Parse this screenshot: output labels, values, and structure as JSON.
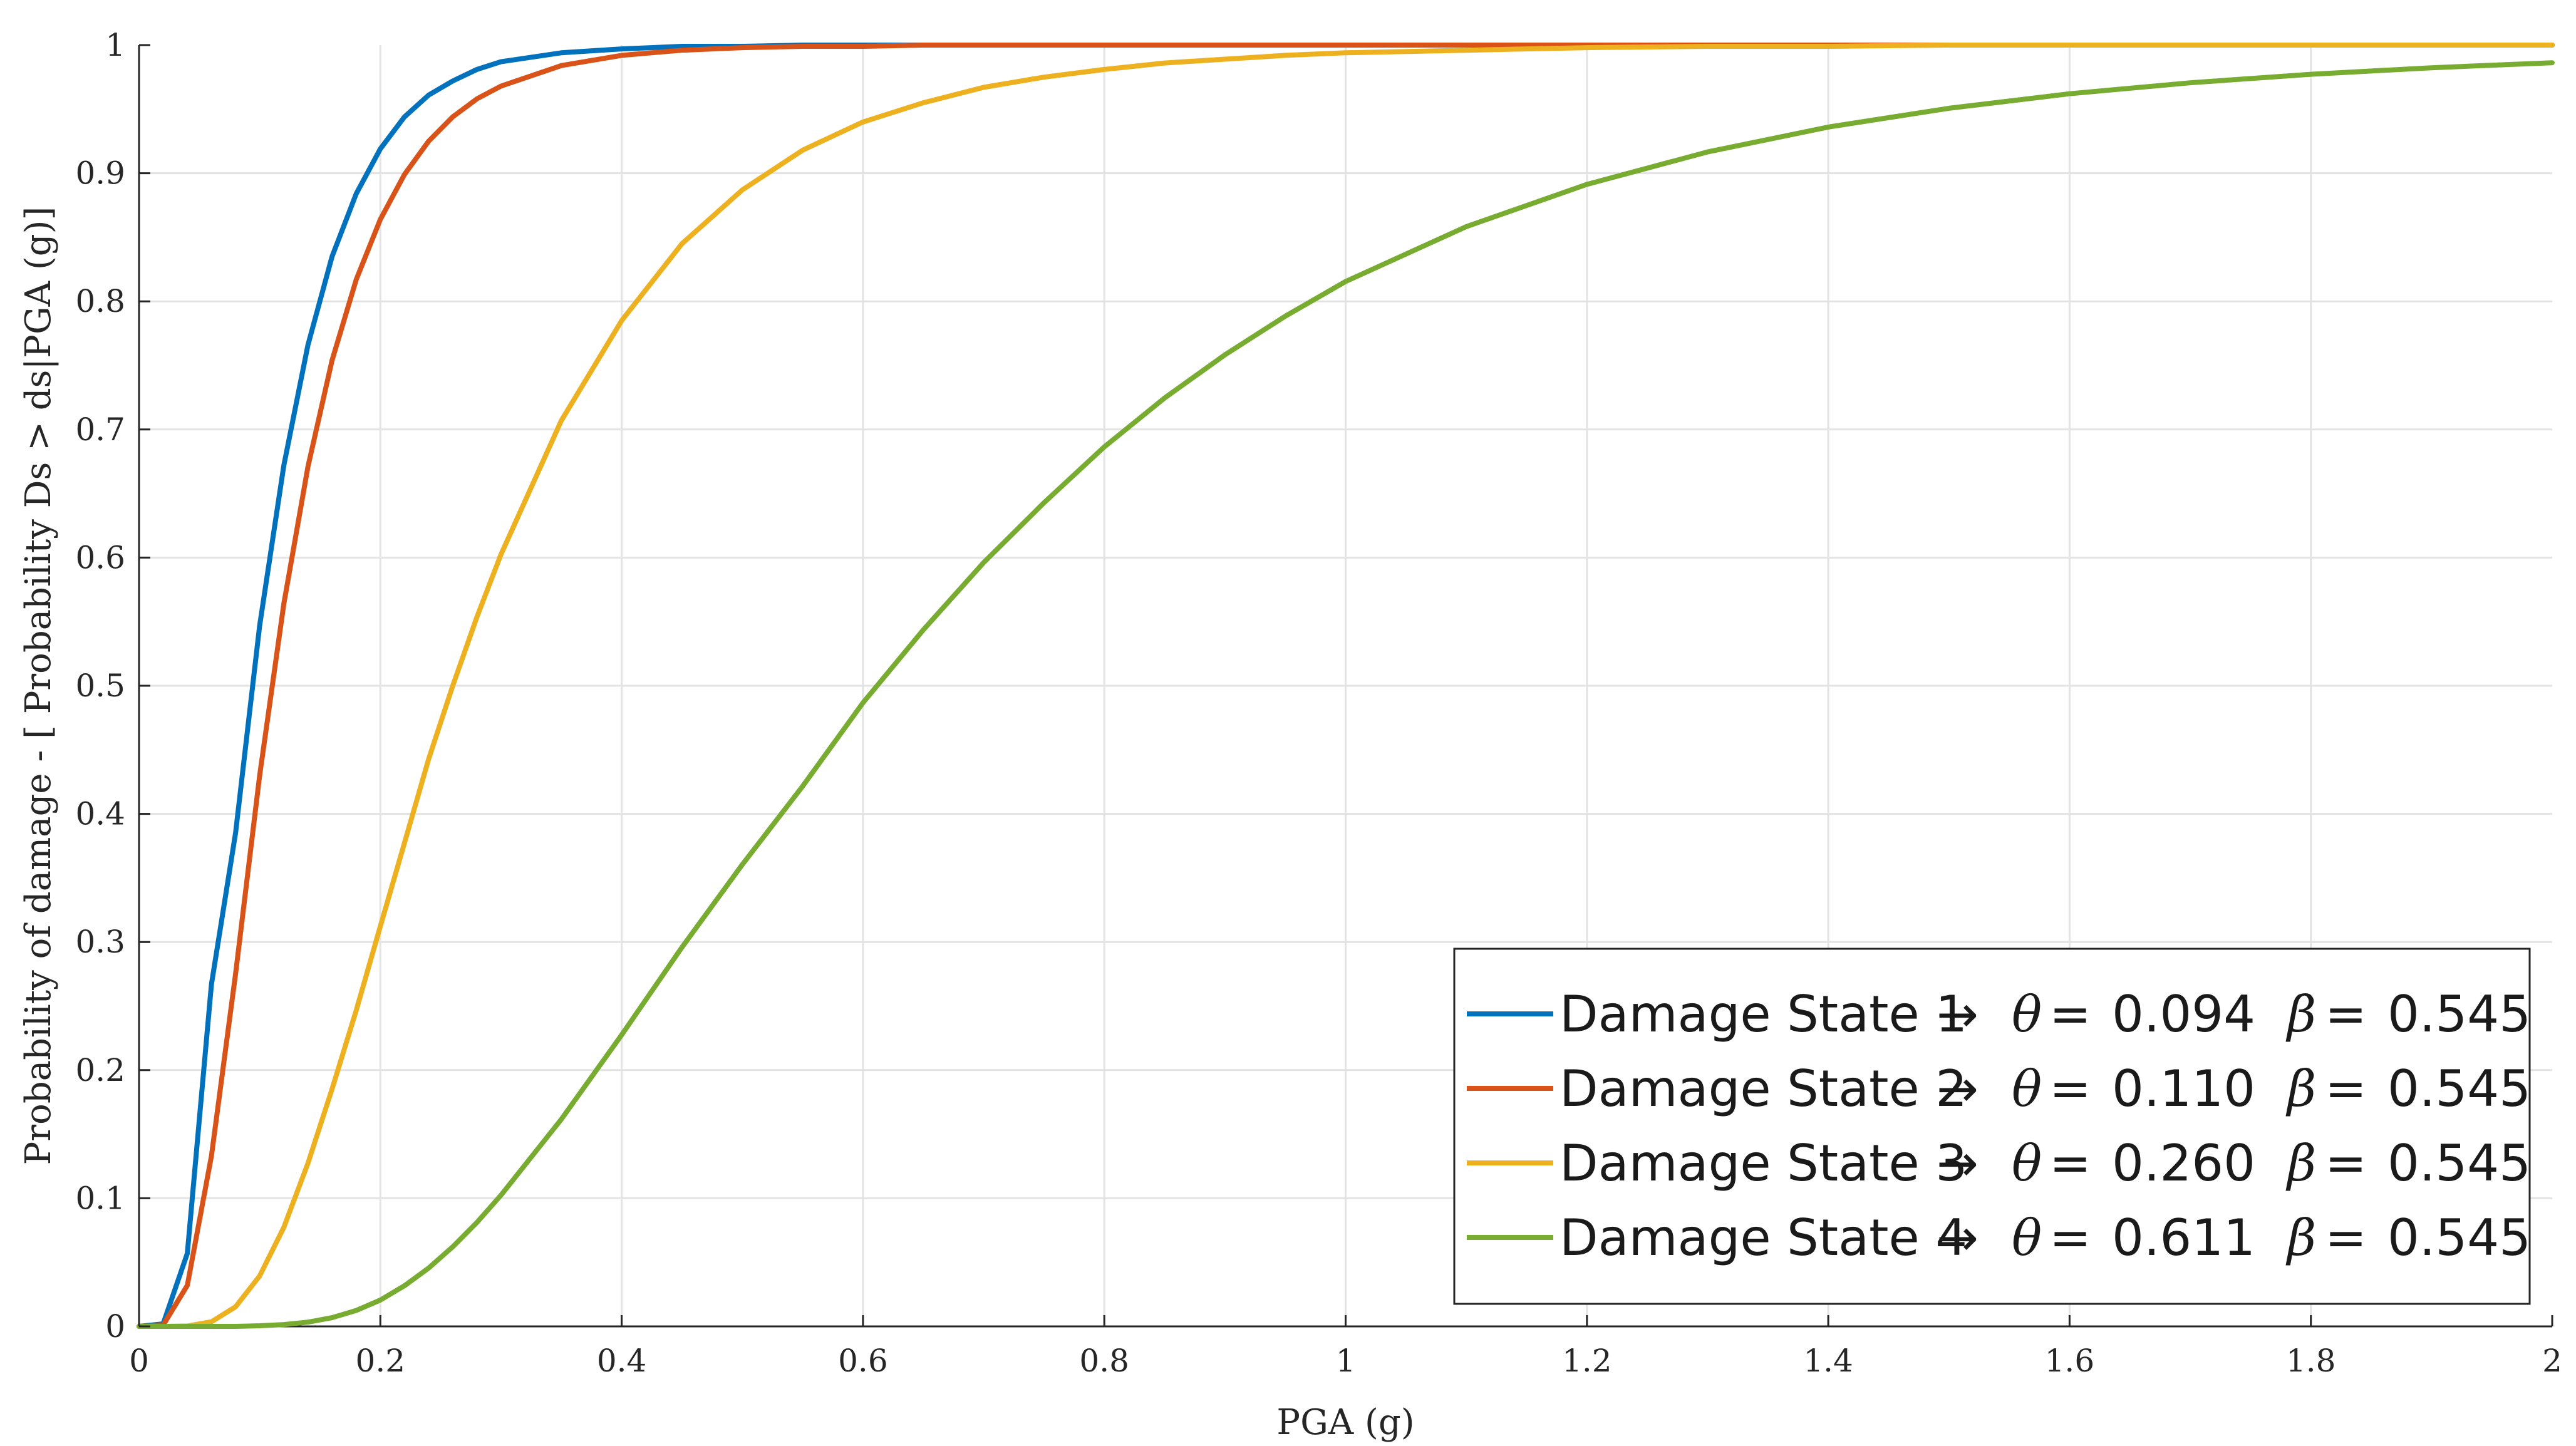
{
  "chart_data": {
    "type": "line",
    "title": "",
    "xlabel": "PGA (g)",
    "ylabel": "Probability of damage - [ Probability Ds > ds|PGA (g)]",
    "xlim": [
      0,
      2
    ],
    "ylim": [
      0,
      1
    ],
    "x_ticks": [
      "0",
      "0.2",
      "0.4",
      "0.6",
      "0.8",
      "1",
      "1.2",
      "1.4",
      "1.6",
      "1.8",
      "2"
    ],
    "y_ticks": [
      "0",
      "0.1",
      "0.2",
      "0.3",
      "0.4",
      "0.5",
      "0.6",
      "0.7",
      "0.8",
      "0.9",
      "1"
    ],
    "grid": true,
    "legend_position": "bottom-right",
    "x": [
      0,
      0.02,
      0.04,
      0.06,
      0.08,
      0.1,
      0.12,
      0.14,
      0.16,
      0.18,
      0.2,
      0.22,
      0.24,
      0.26,
      0.28,
      0.3,
      0.35,
      0.4,
      0.45,
      0.5,
      0.55,
      0.6,
      0.65,
      0.7,
      0.75,
      0.8,
      0.85,
      0.9,
      0.95,
      1.0,
      1.1,
      1.2,
      1.3,
      1.4,
      1.5,
      1.6,
      1.7,
      1.8,
      1.9,
      2.0
    ],
    "series": [
      {
        "name": "Damage State 1",
        "theta": "0.094",
        "beta": "0.545",
        "color": "#0072BD",
        "values": [
          0,
          0.002,
          0.057,
          0.267,
          0.385,
          0.547,
          0.672,
          0.766,
          0.835,
          0.884,
          0.919,
          0.944,
          0.961,
          0.972,
          0.981,
          0.987,
          0.994,
          0.997,
          0.999,
          0.999,
          1.0,
          1.0,
          1.0,
          1.0,
          1.0,
          1.0,
          1.0,
          1.0,
          1.0,
          1.0,
          1.0,
          1.0,
          1.0,
          1.0,
          1.0,
          1.0,
          1.0,
          1.0,
          1.0,
          1.0
        ]
      },
      {
        "name": "Damage State 2",
        "theta": "0.110",
        "beta": "0.545",
        "color": "#D95319",
        "values": [
          0,
          0.001,
          0.032,
          0.133,
          0.275,
          0.43,
          0.564,
          0.671,
          0.754,
          0.817,
          0.864,
          0.899,
          0.925,
          0.944,
          0.958,
          0.968,
          0.984,
          0.992,
          0.996,
          0.998,
          0.999,
          0.999,
          1.0,
          1.0,
          1.0,
          1.0,
          1.0,
          1.0,
          1.0,
          1.0,
          1.0,
          1.0,
          1.0,
          1.0,
          1.0,
          1.0,
          1.0,
          1.0,
          1.0,
          1.0
        ]
      },
      {
        "name": "Damage State 3",
        "theta": "0.260",
        "beta": "0.545",
        "color": "#EDB120",
        "values": [
          0,
          0.0,
          0.0003,
          0.0036,
          0.0153,
          0.0394,
          0.0773,
          0.1273,
          0.1853,
          0.2467,
          0.3123,
          0.3773,
          0.4428,
          0.5,
          0.5535,
          0.6025,
          0.707,
          0.785,
          0.845,
          0.887,
          0.918,
          0.94,
          0.955,
          0.967,
          0.975,
          0.981,
          0.986,
          0.989,
          0.992,
          0.994,
          0.996,
          0.998,
          0.999,
          0.999,
          1.0,
          1.0,
          1.0,
          1.0,
          1.0,
          1.0
        ]
      },
      {
        "name": "Damage State 4",
        "theta": "0.611",
        "beta": "0.545",
        "color": "#77AC30",
        "values": [
          0,
          0.0,
          0.0,
          0.0,
          0.0,
          0.0005,
          0.0014,
          0.0033,
          0.0068,
          0.0124,
          0.0206,
          0.0317,
          0.0455,
          0.0621,
          0.0811,
          0.1024,
          0.1617,
          0.2275,
          0.2959,
          0.3605,
          0.4216,
          0.4867,
          0.5436,
          0.5961,
          0.6428,
          0.6864,
          0.7246,
          0.7583,
          0.7884,
          0.8155,
          0.8583,
          0.8913,
          0.9166,
          0.936,
          0.9507,
          0.962,
          0.9706,
          0.9772,
          0.9823,
          0.9862
        ]
      }
    ]
  }
}
